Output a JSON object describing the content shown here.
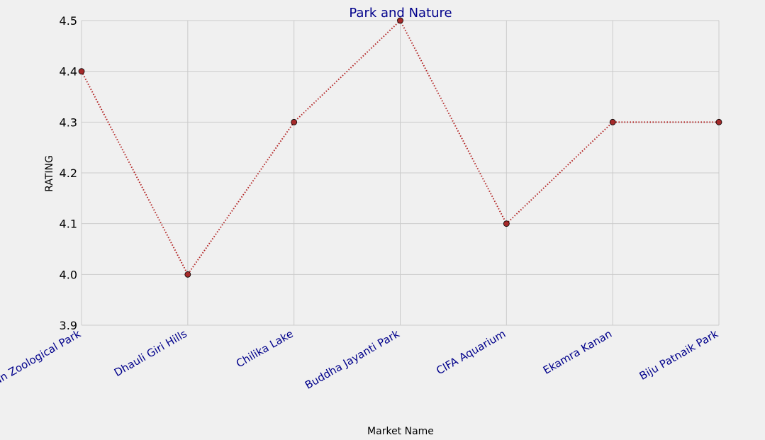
{
  "chart_data": {
    "type": "line",
    "title": "Park and Nature",
    "xlabel": "Market Name",
    "ylabel": "RATING",
    "categories": [
      "Nandankanan Zoological Park",
      "Dhauli Giri Hills",
      "Chilika Lake",
      "Buddha Jayanti Park",
      "CIFA Aquarium",
      "Ekamra Kanan",
      "Biju Patnaik Park"
    ],
    "series": [
      {
        "values": [
          4.4,
          4.0,
          4.3,
          4.5,
          4.1,
          4.3,
          4.3
        ]
      }
    ],
    "ylim": [
      3.9,
      4.5
    ],
    "yticks": [
      "3.9",
      "4.0",
      "4.1",
      "4.2",
      "4.3",
      "4.4",
      "4.5"
    ],
    "grid": true,
    "colors": {
      "line": "#b22222",
      "marker_fill": "#a52a2a",
      "grid": "#cbcbcb",
      "text_accent": "#00008b",
      "background": "#f0f0f0"
    }
  }
}
